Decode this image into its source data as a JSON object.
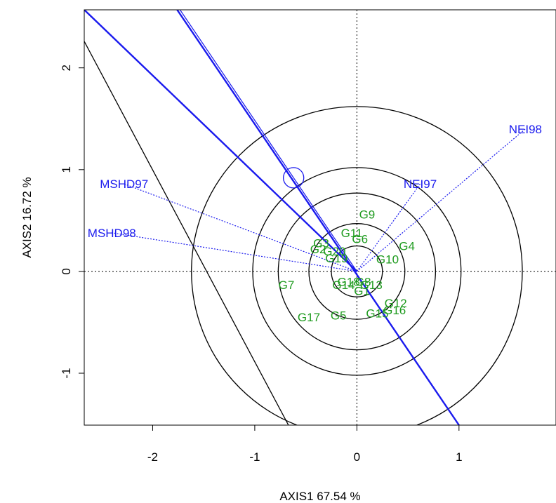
{
  "chart_data": {
    "type": "scatter",
    "title": "",
    "xlabel": "AXIS1 67.54 %",
    "ylabel": "AXIS2 16.72 %",
    "xlim": [
      -2.67,
      1.95
    ],
    "ylim": [
      -1.51,
      2.57
    ],
    "xticks": [
      -2,
      -1,
      0,
      1
    ],
    "xtick_labels": [
      "-2",
      "-1",
      "0",
      "1"
    ],
    "yticks": [
      -1,
      0,
      1,
      2
    ],
    "ytick_labels": [
      "-1",
      "0",
      "1",
      "2"
    ],
    "grid": false,
    "reference_lines": {
      "x": 0,
      "y": 0,
      "style": "dotted"
    },
    "genotypes": [
      {
        "label": "G9",
        "x": 0.1,
        "y": 0.56
      },
      {
        "label": "G11",
        "x": -0.05,
        "y": 0.38
      },
      {
        "label": "G6",
        "x": 0.03,
        "y": 0.32
      },
      {
        "label": "G4",
        "x": 0.49,
        "y": 0.25
      },
      {
        "label": "G3",
        "x": -0.35,
        "y": 0.28
      },
      {
        "label": "G2",
        "x": -0.38,
        "y": 0.22
      },
      {
        "label": "G20",
        "x": -0.22,
        "y": 0.2
      },
      {
        "label": "G19",
        "x": -0.2,
        "y": 0.13
      },
      {
        "label": "G10",
        "x": 0.3,
        "y": 0.12
      },
      {
        "label": "G7",
        "x": -0.69,
        "y": -0.13
      },
      {
        "label": "G14",
        "x": -0.13,
        "y": -0.13
      },
      {
        "label": "G18",
        "x": -0.08,
        "y": -0.1
      },
      {
        "label": "G8",
        "x": 0.06,
        "y": -0.1
      },
      {
        "label": "G13",
        "x": 0.14,
        "y": -0.13
      },
      {
        "label": "G1",
        "x": 0.05,
        "y": -0.19
      },
      {
        "label": "G12",
        "x": 0.38,
        "y": -0.31
      },
      {
        "label": "G16",
        "x": 0.37,
        "y": -0.38
      },
      {
        "label": "G15",
        "x": 0.2,
        "y": -0.41
      },
      {
        "label": "G17",
        "x": -0.47,
        "y": -0.45
      },
      {
        "label": "G5",
        "x": -0.18,
        "y": -0.43
      }
    ],
    "environments": [
      {
        "label": "NEI98",
        "x": 1.65,
        "y": 1.4,
        "label_anchor": "middle"
      },
      {
        "label": "NEI97",
        "x": 0.62,
        "y": 0.86,
        "label_anchor": "middle"
      },
      {
        "label": "MSHD97",
        "x": -2.28,
        "y": 0.86,
        "label_anchor": "middle"
      },
      {
        "label": "MSHD98",
        "x": -2.4,
        "y": 0.38,
        "label_anchor": "middle"
      }
    ],
    "concentric_circle_radii": [
      0.25,
      0.47,
      0.77,
      1.02,
      1.62
    ],
    "ideal_marker": {
      "x": -0.62,
      "y": 0.92,
      "radius": 0.1
    },
    "average_environment_axis": {
      "point": {
        "x": -0.62,
        "y": 0.92
      },
      "color": "#1a1aee"
    },
    "blue_lines": [
      {
        "from": [
          -2.67,
          2.57
        ],
        "to": [
          0,
          0
        ]
      },
      {
        "from": [
          -1.76,
          2.57
        ],
        "to": [
          1.0,
          -1.51
        ]
      }
    ],
    "black_line": {
      "from": [
        -2.67,
        2.26
      ],
      "to": [
        -0.67,
        -1.51
      ]
    },
    "colors": {
      "genotype": "#1f9b1f",
      "environment": "#1a1aee",
      "axes": "#000000"
    }
  }
}
